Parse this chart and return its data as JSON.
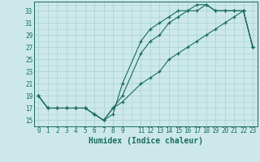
{
  "title": "",
  "xlabel": "Humidex (Indice chaleur)",
  "bg_color": "#cce8ea",
  "grid_major_color": "#aad4d6",
  "grid_minor_color": "#aad4d6",
  "line_color": "#1a6b5e",
  "xlim": [
    -0.5,
    23.5
  ],
  "ylim": [
    14.0,
    34.5
  ],
  "xticks_major": [
    0,
    1,
    2,
    3,
    4,
    5,
    6,
    7,
    8,
    9,
    11,
    12,
    13,
    14,
    15,
    16,
    17,
    18,
    19,
    20,
    21,
    22,
    23
  ],
  "xticks_minor": [
    0,
    1,
    2,
    3,
    4,
    5,
    6,
    7,
    8,
    9,
    10,
    11,
    12,
    13,
    14,
    15,
    16,
    17,
    18,
    19,
    20,
    21,
    22,
    23
  ],
  "yticks_major": [
    15,
    17,
    19,
    21,
    23,
    25,
    27,
    29,
    31,
    33
  ],
  "yticks_minor": [
    14,
    15,
    16,
    17,
    18,
    19,
    20,
    21,
    22,
    23,
    24,
    25,
    26,
    27,
    28,
    29,
    30,
    31,
    32,
    33,
    34
  ],
  "line1_x": [
    0,
    1,
    2,
    3,
    4,
    5,
    6,
    7,
    8,
    9,
    11,
    12,
    13,
    14,
    15,
    16,
    17,
    18,
    19,
    20,
    21,
    22,
    23
  ],
  "line1_y": [
    19,
    17,
    17,
    17,
    17,
    17,
    16,
    15,
    16,
    21,
    28,
    30,
    31,
    32,
    33,
    33,
    34,
    34,
    33,
    33,
    33,
    33,
    27
  ],
  "line2_x": [
    0,
    1,
    2,
    3,
    4,
    5,
    6,
    7,
    8,
    9,
    11,
    12,
    13,
    14,
    15,
    16,
    17,
    18,
    19,
    20,
    21,
    22,
    23
  ],
  "line2_y": [
    19,
    17,
    17,
    17,
    17,
    17,
    16,
    15,
    17,
    19,
    26,
    28,
    29,
    31,
    32,
    33,
    33,
    34,
    33,
    33,
    33,
    33,
    27
  ],
  "line3_x": [
    0,
    1,
    2,
    3,
    4,
    5,
    6,
    7,
    8,
    9,
    11,
    12,
    13,
    14,
    15,
    16,
    17,
    18,
    19,
    20,
    21,
    22,
    23
  ],
  "line3_y": [
    19,
    17,
    17,
    17,
    17,
    17,
    16,
    15,
    17,
    18,
    21,
    22,
    23,
    25,
    26,
    27,
    28,
    29,
    30,
    31,
    32,
    33,
    27
  ],
  "xlabel_fontsize": 7,
  "tick_fontsize": 5.5
}
